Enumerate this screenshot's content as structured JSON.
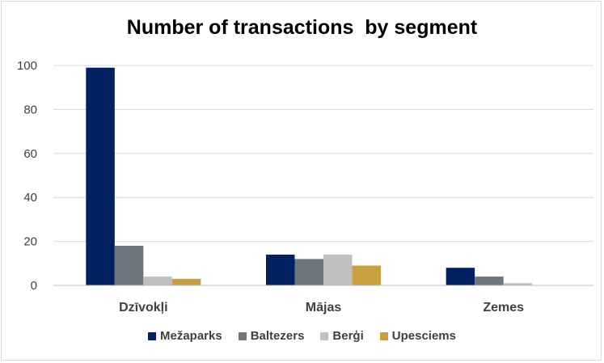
{
  "chart_data": {
    "type": "bar",
    "title": "Number of transactions  by segment",
    "categories": [
      "Dzīvokļi",
      "Mājas",
      "Zemes"
    ],
    "series": [
      {
        "name": "Mežaparks",
        "color": "#002060",
        "values": [
          99,
          14,
          8
        ]
      },
      {
        "name": "Baltezers",
        "color": "#6b767f",
        "values": [
          18,
          12,
          4
        ]
      },
      {
        "name": "Berģi",
        "color": "#bfbfbf",
        "values": [
          4,
          14,
          1
        ]
      },
      {
        "name": "Upesciems",
        "color": "#c9a040",
        "values": [
          3,
          9,
          0
        ]
      }
    ],
    "ylim": [
      0,
      100
    ],
    "yticks": [
      0,
      20,
      40,
      60,
      80,
      100
    ],
    "grid": true,
    "legend_position": "bottom"
  }
}
